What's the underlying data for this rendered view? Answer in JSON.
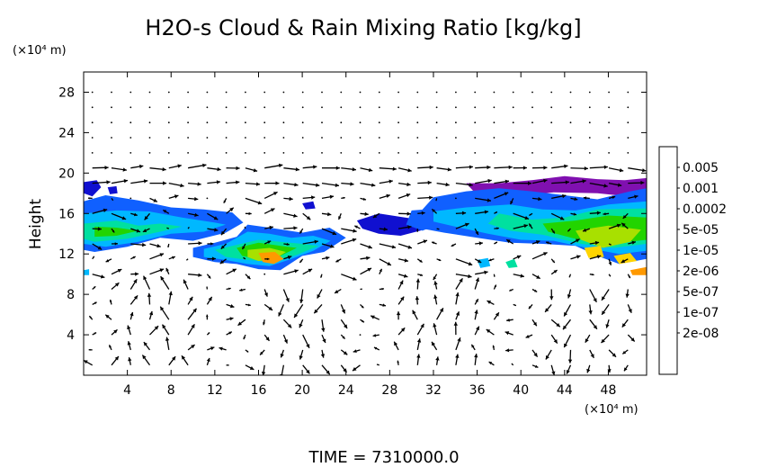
{
  "chart_data": {
    "type": "heatmap",
    "title": "H2O-s Cloud & Rain Mixing Ratio [kg/kg]",
    "ylabel": "Height",
    "y_unit": "(×10⁴ m)",
    "x_unit": "(×10⁴ m)",
    "footer": "TIME  =  7310000.0",
    "xlim": [
      0,
      51.5
    ],
    "ylim": [
      0,
      30
    ],
    "xticks": [
      "4",
      "8",
      "12",
      "16",
      "20",
      "24",
      "28",
      "32",
      "36",
      "40",
      "44",
      "48"
    ],
    "xtick_values": [
      4,
      8,
      12,
      16,
      20,
      24,
      28,
      32,
      36,
      40,
      44,
      48
    ],
    "yticks": [
      "4",
      "8",
      "12",
      "16",
      "20",
      "24",
      "28"
    ],
    "ytick_values": [
      4,
      8,
      12,
      16,
      20,
      24,
      28
    ],
    "colorbar": {
      "labels": [
        "0.005",
        "0.001",
        "0.0002",
        "5e-05",
        "1e-05",
        "2e-06",
        "5e-07",
        "1e-07",
        "2e-08"
      ],
      "colors": [
        "#ff9a9a",
        "#ff3030",
        "#ff9900",
        "#ffd400",
        "#a8e000",
        "#22d400",
        "#00e0a0",
        "#00b8ff",
        "#1060ff",
        "#1010d0",
        "#8010b0"
      ]
    },
    "cloud_regions": [
      {
        "name": "left cloud",
        "level": 8,
        "points": [
          [
            0,
            17.2
          ],
          [
            2,
            17.8
          ],
          [
            5,
            17.3
          ],
          [
            8,
            16.6
          ],
          [
            11,
            16.4
          ],
          [
            13.6,
            16.1
          ],
          [
            14.6,
            15.1
          ],
          [
            13,
            14.1
          ],
          [
            10,
            13.3
          ],
          [
            7,
            13.6
          ],
          [
            4,
            12.7
          ],
          [
            1,
            12.2
          ],
          [
            0,
            12.4
          ]
        ]
      },
      {
        "name": "left cloud",
        "level": 7,
        "points": [
          [
            0,
            16
          ],
          [
            3,
            16.3
          ],
          [
            6,
            16.2
          ],
          [
            9,
            15.6
          ],
          [
            12,
            15.1
          ],
          [
            13,
            14.9
          ],
          [
            11,
            14.2
          ],
          [
            8,
            14
          ],
          [
            5,
            13.2
          ],
          [
            2,
            12.7
          ],
          [
            0,
            13
          ]
        ]
      },
      {
        "name": "left cloud",
        "level": 6,
        "points": [
          [
            0,
            15
          ],
          [
            3,
            15.3
          ],
          [
            5,
            14.8
          ],
          [
            7,
            15
          ],
          [
            9,
            14.7
          ],
          [
            7,
            14.2
          ],
          [
            4,
            13.5
          ],
          [
            1,
            13.2
          ],
          [
            0,
            13.5
          ]
        ]
      },
      {
        "name": "left cloud",
        "level": 5,
        "points": [
          [
            1,
            14.7
          ],
          [
            3,
            14.6
          ],
          [
            5,
            14.3
          ],
          [
            3,
            13.8
          ],
          [
            1,
            13.7
          ]
        ]
      },
      {
        "name": "top-left edge",
        "level": 9,
        "points": [
          [
            0,
            19.1
          ],
          [
            1.2,
            19.3
          ],
          [
            1.6,
            18.6
          ],
          [
            0.8,
            17.7
          ],
          [
            0,
            18
          ]
        ]
      },
      {
        "name": "central band",
        "level": 8,
        "points": [
          [
            10,
            12.6
          ],
          [
            12,
            13.1
          ],
          [
            14,
            13.7
          ],
          [
            15,
            14.9
          ],
          [
            17,
            14.6
          ],
          [
            20,
            14.1
          ],
          [
            22.5,
            14.6
          ],
          [
            24,
            13.6
          ],
          [
            22,
            12.2
          ],
          [
            20,
            11.8
          ],
          [
            18,
            10.4
          ],
          [
            16,
            10.5
          ],
          [
            14,
            11
          ],
          [
            12,
            11.2
          ],
          [
            10,
            11.7
          ]
        ]
      },
      {
        "name": "central band",
        "level": 7,
        "points": [
          [
            11,
            12.5
          ],
          [
            13,
            13
          ],
          [
            15,
            14.2
          ],
          [
            17,
            14
          ],
          [
            19,
            13.6
          ],
          [
            21,
            13.8
          ],
          [
            22.6,
            13.3
          ],
          [
            21,
            12.3
          ],
          [
            19,
            11.5
          ],
          [
            17,
            10.8
          ],
          [
            15,
            11
          ],
          [
            13,
            11.4
          ],
          [
            11,
            11.7
          ]
        ]
      },
      {
        "name": "central band",
        "level": 6,
        "points": [
          [
            12,
            12.4
          ],
          [
            14,
            12.9
          ],
          [
            16,
            13.4
          ],
          [
            18,
            13.2
          ],
          [
            20,
            13
          ],
          [
            21.5,
            12.8
          ],
          [
            19.5,
            11.9
          ],
          [
            17.5,
            11.2
          ],
          [
            15,
            11.4
          ],
          [
            13,
            11.7
          ]
        ]
      },
      {
        "name": "central band",
        "level": 5,
        "points": [
          [
            14,
            12.6
          ],
          [
            16,
            13.1
          ],
          [
            18,
            12.8
          ],
          [
            19.5,
            12.6
          ],
          [
            18,
            11.8
          ],
          [
            16,
            11.5
          ],
          [
            14.5,
            11.8
          ]
        ]
      },
      {
        "name": "central band",
        "level": 4,
        "points": [
          [
            15,
            12.4
          ],
          [
            17,
            12.6
          ],
          [
            18.5,
            12.2
          ],
          [
            17.5,
            11.5
          ],
          [
            16,
            11.3
          ],
          [
            15,
            11.7
          ]
        ]
      },
      {
        "name": "central band",
        "level": 2,
        "points": [
          [
            16,
            12.1
          ],
          [
            17.5,
            12.2
          ],
          [
            18.3,
            11.5
          ],
          [
            17.4,
            11
          ],
          [
            16.4,
            11.2
          ]
        ]
      },
      {
        "name": "mid patch",
        "level": 9,
        "points": [
          [
            25,
            15.3
          ],
          [
            27,
            16
          ],
          [
            30,
            15.5
          ],
          [
            31.5,
            14.5
          ],
          [
            29,
            13.8
          ],
          [
            27,
            14
          ],
          [
            25.5,
            14.5
          ]
        ]
      },
      {
        "name": "mid patch",
        "level": 8,
        "points": [
          [
            30,
            16.3
          ],
          [
            32.5,
            16.5
          ],
          [
            34.5,
            16.1
          ],
          [
            33,
            15.2
          ],
          [
            31,
            14.3
          ],
          [
            29.5,
            14.9
          ]
        ]
      },
      {
        "name": "right cloud",
        "level": 10,
        "points": [
          [
            35,
            19
          ],
          [
            38,
            19
          ],
          [
            41,
            19.3
          ],
          [
            44,
            19.7
          ],
          [
            47,
            19.4
          ],
          [
            49.5,
            19.3
          ],
          [
            51.5,
            19.5
          ],
          [
            51.5,
            17.5
          ],
          [
            47,
            18
          ],
          [
            43,
            18.1
          ],
          [
            39,
            17.6
          ],
          [
            36,
            17.8
          ]
        ]
      },
      {
        "name": "right cloud",
        "level": 8,
        "points": [
          [
            32,
            17.6
          ],
          [
            35,
            18.2
          ],
          [
            38,
            18.5
          ],
          [
            41,
            18.2
          ],
          [
            44,
            17.8
          ],
          [
            47,
            17.4
          ],
          [
            50,
            18.2
          ],
          [
            51.5,
            18.5
          ],
          [
            51.5,
            11.5
          ],
          [
            49,
            11
          ],
          [
            47,
            11.8
          ],
          [
            45,
            12.8
          ],
          [
            42,
            13
          ],
          [
            39,
            13.1
          ],
          [
            36,
            13.6
          ],
          [
            33,
            14.1
          ],
          [
            31,
            14.5
          ],
          [
            30.5,
            15.8
          ]
        ]
      },
      {
        "name": "right cloud",
        "level": 7,
        "points": [
          [
            32,
            16.2
          ],
          [
            35,
            16.6
          ],
          [
            39,
            16.9
          ],
          [
            42,
            16.4
          ],
          [
            45,
            16.3
          ],
          [
            48,
            16.9
          ],
          [
            51.5,
            17.2
          ],
          [
            51.5,
            12.3
          ],
          [
            49,
            12
          ],
          [
            46,
            12.6
          ],
          [
            43,
            13.3
          ],
          [
            40,
            13.4
          ],
          [
            37,
            14
          ],
          [
            34,
            14.7
          ],
          [
            32,
            15.2
          ]
        ]
      },
      {
        "name": "right cloud",
        "level": 6,
        "points": [
          [
            38,
            16
          ],
          [
            41,
            15.4
          ],
          [
            44,
            15.6
          ],
          [
            47,
            16.4
          ],
          [
            51.5,
            16.5
          ],
          [
            51.5,
            13
          ],
          [
            48.5,
            12.6
          ],
          [
            45.5,
            13
          ],
          [
            42,
            13.9
          ],
          [
            39,
            14.3
          ],
          [
            37,
            15
          ]
        ]
      },
      {
        "name": "right cloud",
        "level": 5,
        "points": [
          [
            42,
            15
          ],
          [
            45,
            15.3
          ],
          [
            48,
            15.8
          ],
          [
            51.5,
            15.6
          ],
          [
            51.5,
            13.4
          ],
          [
            48,
            13
          ],
          [
            45,
            13.5
          ],
          [
            42.5,
            14.2
          ]
        ]
      },
      {
        "name": "right cloud",
        "level": 4,
        "points": [
          [
            45,
            14.3
          ],
          [
            48,
            14.8
          ],
          [
            51,
            14.4
          ],
          [
            50,
            13.2
          ],
          [
            47.5,
            12.6
          ],
          [
            45.5,
            13.4
          ]
        ]
      },
      {
        "name": "right cloud",
        "level": 3,
        "points": [
          [
            45.8,
            12.6
          ],
          [
            47.3,
            12.8
          ],
          [
            47.6,
            11.7
          ],
          [
            46.2,
            11.6
          ]
        ]
      },
      {
        "name": "right edge",
        "level": 2,
        "points": [
          [
            50,
            10.4
          ],
          [
            51.5,
            10.7
          ],
          [
            51.5,
            9.9
          ],
          [
            50.2,
            9.9
          ]
        ]
      },
      {
        "name": "right edge",
        "level": 3,
        "points": [
          [
            48.5,
            11.8
          ],
          [
            50,
            12.1
          ],
          [
            50.6,
            11.3
          ],
          [
            49,
            11
          ]
        ]
      },
      {
        "name": "small blob",
        "level": 7,
        "points": [
          [
            36,
            11.4
          ],
          [
            37,
            11.6
          ],
          [
            37.2,
            10.8
          ],
          [
            36.3,
            10.6
          ]
        ]
      },
      {
        "name": "small blob",
        "level": 6,
        "points": [
          [
            38.6,
            11.2
          ],
          [
            39.4,
            11.5
          ],
          [
            39.7,
            10.7
          ],
          [
            38.9,
            10.6
          ]
        ]
      },
      {
        "name": "small blob",
        "level": 9,
        "points": [
          [
            20,
            17
          ],
          [
            21,
            17.2
          ],
          [
            21.2,
            16.5
          ],
          [
            20.3,
            16.4
          ]
        ]
      },
      {
        "name": "small blob",
        "level": 9,
        "points": [
          [
            2.2,
            18.6
          ],
          [
            3,
            18.7
          ],
          [
            3.1,
            18
          ],
          [
            2.4,
            17.9
          ]
        ]
      },
      {
        "name": "small blob",
        "level": 7,
        "points": [
          [
            0,
            10.4
          ],
          [
            0.5,
            10.5
          ],
          [
            0.5,
            9.9
          ],
          [
            0,
            9.9
          ]
        ]
      }
    ],
    "wind_vectors": "velocity arrows on a regular grid (shown, not labeled)"
  }
}
